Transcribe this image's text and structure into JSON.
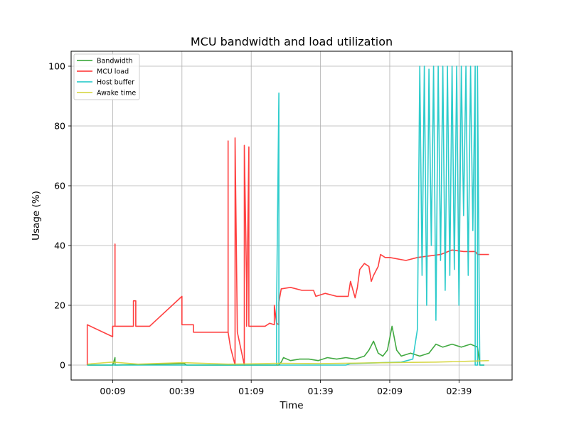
{
  "chart_data": {
    "type": "line",
    "title": "MCU bandwidth and load utilization",
    "xlabel": "Time",
    "ylabel": "Usage (%)",
    "xlim": [
      "23:51",
      "03:02"
    ],
    "ylim": [
      -5,
      105
    ],
    "x_unit": "clock time (HH:MM)",
    "x_ticks": [
      "00:09",
      "00:39",
      "01:09",
      "01:39",
      "02:09",
      "02:39"
    ],
    "y_ticks": [
      0,
      20,
      40,
      60,
      80,
      100
    ],
    "grid": true,
    "legend_position": "top-left",
    "series": [
      {
        "name": "Bandwidth",
        "color": "#2ca02c",
        "points": [
          [
            "23:58",
            0
          ],
          [
            "00:09",
            0
          ],
          [
            "00:10",
            2.5
          ],
          [
            "00:10",
            0
          ],
          [
            "00:40",
            0.5
          ],
          [
            "00:41",
            0
          ],
          [
            "01:11",
            0
          ],
          [
            "01:21",
            0
          ],
          [
            "01:22",
            1
          ],
          [
            "01:23",
            2.5
          ],
          [
            "01:26",
            1.5
          ],
          [
            "01:30",
            2
          ],
          [
            "01:34",
            2
          ],
          [
            "01:38",
            1.5
          ],
          [
            "01:42",
            2.5
          ],
          [
            "01:46",
            2
          ],
          [
            "01:50",
            2.5
          ],
          [
            "01:54",
            2
          ],
          [
            "01:58",
            3
          ],
          [
            "02:00",
            5
          ],
          [
            "02:02",
            8
          ],
          [
            "02:04",
            4
          ],
          [
            "02:06",
            3
          ],
          [
            "02:08",
            5
          ],
          [
            "02:10",
            13
          ],
          [
            "02:12",
            5
          ],
          [
            "02:14",
            3
          ],
          [
            "02:18",
            4
          ],
          [
            "02:22",
            3
          ],
          [
            "02:26",
            4
          ],
          [
            "02:29",
            7
          ],
          [
            "02:32",
            6
          ],
          [
            "02:36",
            7
          ],
          [
            "02:40",
            6
          ],
          [
            "02:44",
            7
          ],
          [
            "02:47",
            6
          ],
          [
            "02:48",
            0
          ],
          [
            "02:50",
            0
          ]
        ]
      },
      {
        "name": "MCU load",
        "color": "#ff2b2b",
        "points": [
          [
            "23:58",
            0
          ],
          [
            "23:58",
            13.5
          ],
          [
            "00:09",
            9.5
          ],
          [
            "00:09",
            13
          ],
          [
            "00:10",
            13
          ],
          [
            "00:10",
            40.5
          ],
          [
            "00:10",
            13
          ],
          [
            "00:18",
            13
          ],
          [
            "00:18",
            21.5
          ],
          [
            "00:19",
            21.5
          ],
          [
            "00:19",
            13
          ],
          [
            "00:24",
            13
          ],
          [
            "00:25",
            13
          ],
          [
            "00:39",
            23
          ],
          [
            "00:39",
            13.5
          ],
          [
            "00:44",
            13.5
          ],
          [
            "00:44",
            11
          ],
          [
            "00:59",
            11
          ],
          [
            "00:59",
            75
          ],
          [
            "00:59",
            11
          ],
          [
            "01:00",
            6
          ],
          [
            "01:02",
            0
          ],
          [
            "01:02",
            76
          ],
          [
            "01:03",
            11
          ],
          [
            "01:06",
            0
          ],
          [
            "01:06",
            73.5
          ],
          [
            "01:07",
            27
          ],
          [
            "01:07",
            13
          ],
          [
            "01:08",
            73
          ],
          [
            "01:08",
            13
          ],
          [
            "01:15",
            13
          ],
          [
            "01:17",
            14
          ],
          [
            "01:19",
            13.5
          ],
          [
            "01:19",
            20
          ],
          [
            "01:20",
            14
          ],
          [
            "01:21",
            13.5
          ],
          [
            "01:21",
            21
          ],
          [
            "01:22",
            25.5
          ],
          [
            "01:26",
            26
          ],
          [
            "01:31",
            25
          ],
          [
            "01:36",
            25
          ],
          [
            "01:37",
            23
          ],
          [
            "01:41",
            24
          ],
          [
            "01:46",
            23
          ],
          [
            "01:51",
            23
          ],
          [
            "01:52",
            28
          ],
          [
            "01:54",
            22.5
          ],
          [
            "01:55",
            26
          ],
          [
            "01:56",
            32
          ],
          [
            "01:58",
            34
          ],
          [
            "02:00",
            33
          ],
          [
            "02:01",
            28
          ],
          [
            "02:02",
            30
          ],
          [
            "02:04",
            33
          ],
          [
            "02:05",
            37
          ],
          [
            "02:07",
            36
          ],
          [
            "02:09",
            36
          ],
          [
            "02:16",
            35
          ],
          [
            "02:21",
            36
          ],
          [
            "02:26",
            36.5
          ],
          [
            "02:31",
            37
          ],
          [
            "02:36",
            38.5
          ],
          [
            "02:41",
            38
          ],
          [
            "02:46",
            38
          ],
          [
            "02:47",
            37
          ],
          [
            "02:52",
            37
          ]
        ]
      },
      {
        "name": "Host buffer",
        "color": "#17c6c6",
        "points": [
          [
            "23:58",
            0
          ],
          [
            "01:20",
            0
          ],
          [
            "01:20",
            20
          ],
          [
            "01:21",
            91
          ],
          [
            "01:21",
            0
          ],
          [
            "01:50",
            0
          ],
          [
            "01:52",
            0.5
          ],
          [
            "02:14",
            1
          ],
          [
            "02:19",
            2
          ],
          [
            "02:21",
            12
          ],
          [
            "02:22",
            100
          ],
          [
            "02:23",
            30
          ],
          [
            "02:24",
            100
          ],
          [
            "02:25",
            20
          ],
          [
            "02:26",
            99
          ],
          [
            "02:27",
            40
          ],
          [
            "02:28",
            100
          ],
          [
            "02:29",
            15
          ],
          [
            "02:30",
            100
          ],
          [
            "02:31",
            35
          ],
          [
            "02:32",
            100
          ],
          [
            "02:33",
            25
          ],
          [
            "02:34",
            100
          ],
          [
            "02:35",
            30
          ],
          [
            "02:36",
            100
          ],
          [
            "02:37",
            32
          ],
          [
            "02:38",
            100
          ],
          [
            "02:39",
            20
          ],
          [
            "02:40",
            100
          ],
          [
            "02:41",
            50
          ],
          [
            "02:42",
            100
          ],
          [
            "02:43",
            30
          ],
          [
            "02:44",
            100
          ],
          [
            "02:45",
            45
          ],
          [
            "02:46",
            100
          ],
          [
            "02:46",
            0
          ],
          [
            "02:47",
            0
          ],
          [
            "02:47",
            100
          ],
          [
            "02:48",
            0
          ],
          [
            "02:50",
            0
          ]
        ]
      },
      {
        "name": "Awake time",
        "color": "#d4d435",
        "points": [
          [
            "23:58",
            0.3
          ],
          [
            "00:09",
            1
          ],
          [
            "00:20",
            0.3
          ],
          [
            "00:39",
            0.8
          ],
          [
            "00:59",
            0.3
          ],
          [
            "01:09",
            0.4
          ],
          [
            "01:21",
            0.6
          ],
          [
            "01:39",
            0.5
          ],
          [
            "02:09",
            0.8
          ],
          [
            "02:29",
            1
          ],
          [
            "02:39",
            1.2
          ],
          [
            "02:52",
            1.5
          ]
        ]
      }
    ]
  }
}
